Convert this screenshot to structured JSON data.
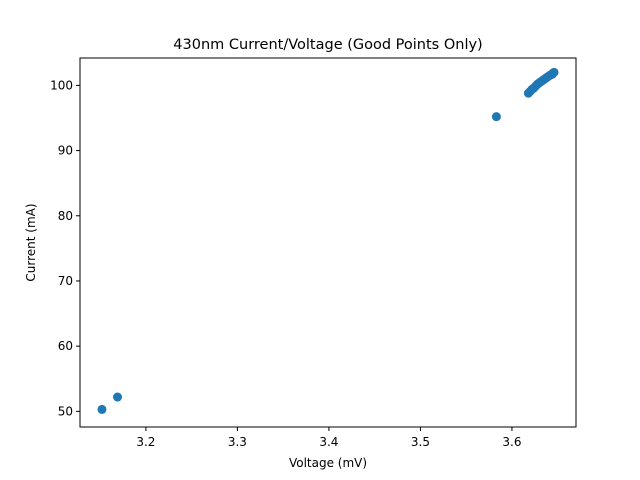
{
  "chart_data": {
    "type": "scatter",
    "title": "430nm Current/Voltage (Good Points Only)",
    "xlabel": "Voltage (mV)",
    "ylabel": "Current (mA)",
    "xlim": [
      3.128,
      3.67
    ],
    "ylim": [
      47.6,
      104.2
    ],
    "xticks": [
      3.2,
      3.3,
      3.4,
      3.5,
      3.6
    ],
    "xtick_labels": [
      "3.2",
      "3.3",
      "3.4",
      "3.5",
      "3.6"
    ],
    "yticks": [
      50,
      60,
      70,
      80,
      90,
      100
    ],
    "ytick_labels": [
      "50",
      "60",
      "70",
      "80",
      "90",
      "100"
    ],
    "grid": false,
    "series": [
      {
        "color": "#1f77b4",
        "x": [
          3.152,
          3.169,
          3.583,
          3.618,
          3.62,
          3.622,
          3.624,
          3.626,
          3.628,
          3.63,
          3.632,
          3.634,
          3.636,
          3.638,
          3.64,
          3.642,
          3.644,
          3.645,
          3.646
        ],
        "y": [
          50.3,
          52.2,
          95.2,
          98.8,
          99.1,
          99.4,
          99.6,
          99.9,
          100.2,
          100.4,
          100.6,
          100.8,
          101.0,
          101.2,
          101.4,
          101.6,
          101.7,
          101.9,
          102.0
        ]
      }
    ]
  }
}
